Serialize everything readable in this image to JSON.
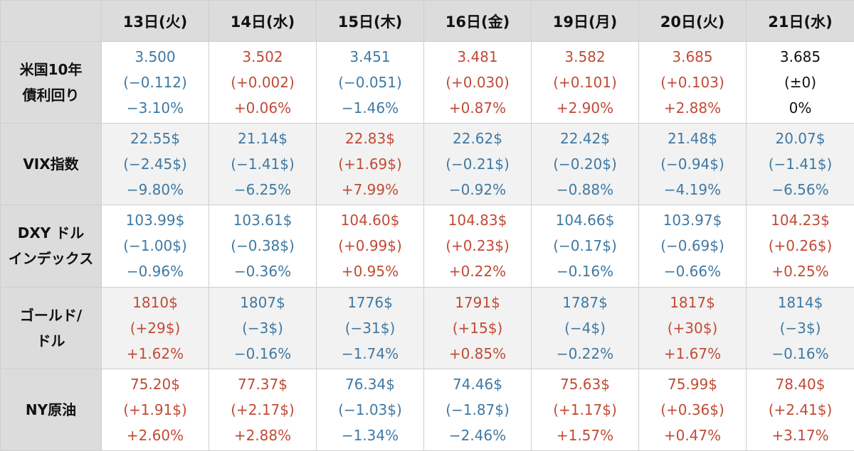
{
  "colors": {
    "up": "#c04b36",
    "down": "#3f79a3",
    "flat": "#111111",
    "header_bg": "#dcdcdc",
    "row_shade": "#f2f2f2"
  },
  "days": [
    "13日(火)",
    "14日(水)",
    "15日(木)",
    "16日(金)",
    "19日(月)",
    "20日(火)",
    "21日(水)"
  ],
  "rows": [
    {
      "label_lines": [
        "米国10年",
        "債利回り"
      ],
      "cells": [
        {
          "lines": [
            "3.500",
            "(−0.112)",
            "−3.10%"
          ],
          "trend": "down"
        },
        {
          "lines": [
            "3.502",
            "(+0.002)",
            "+0.06%"
          ],
          "trend": "up"
        },
        {
          "lines": [
            "3.451",
            "(−0.051)",
            "−1.46%"
          ],
          "trend": "down"
        },
        {
          "lines": [
            "3.481",
            "(+0.030)",
            "+0.87%"
          ],
          "trend": "up"
        },
        {
          "lines": [
            "3.582",
            "(+0.101)",
            "+2.90%"
          ],
          "trend": "up"
        },
        {
          "lines": [
            "3.685",
            "(+0.103)",
            "+2.88%"
          ],
          "trend": "up"
        },
        {
          "lines": [
            "3.685",
            "(±0)",
            "0%"
          ],
          "trend": "flat"
        }
      ]
    },
    {
      "label_lines": [
        "VIX指数"
      ],
      "cells": [
        {
          "lines": [
            "22.55$",
            "(−2.45$)",
            "−9.80%"
          ],
          "trend": "down"
        },
        {
          "lines": [
            "21.14$",
            "(−1.41$)",
            "−6.25%"
          ],
          "trend": "down"
        },
        {
          "lines": [
            "22.83$",
            "(+1.69$)",
            "+7.99%"
          ],
          "trend": "up"
        },
        {
          "lines": [
            "22.62$",
            "(−0.21$)",
            "−0.92%"
          ],
          "trend": "down"
        },
        {
          "lines": [
            "22.42$",
            "(−0.20$)",
            "−0.88%"
          ],
          "trend": "down"
        },
        {
          "lines": [
            "21.48$",
            "(−0.94$)",
            "−4.19%"
          ],
          "trend": "down"
        },
        {
          "lines": [
            "20.07$",
            "(−1.41$)",
            "−6.56%"
          ],
          "trend": "down"
        }
      ]
    },
    {
      "label_lines": [
        "DXY ドル",
        "インデックス"
      ],
      "cells": [
        {
          "lines": [
            "103.99$",
            "(−1.00$)",
            "−0.96%"
          ],
          "trend": "down"
        },
        {
          "lines": [
            "103.61$",
            "(−0.38$)",
            "−0.36%"
          ],
          "trend": "down"
        },
        {
          "lines": [
            "104.60$",
            "(+0.99$)",
            "+0.95%"
          ],
          "trend": "up"
        },
        {
          "lines": [
            "104.83$",
            "(+0.23$)",
            "+0.22%"
          ],
          "trend": "up"
        },
        {
          "lines": [
            "104.66$",
            "(−0.17$)",
            "−0.16%"
          ],
          "trend": "down"
        },
        {
          "lines": [
            "103.97$",
            "(−0.69$)",
            "−0.66%"
          ],
          "trend": "down"
        },
        {
          "lines": [
            "104.23$",
            "(+0.26$)",
            "+0.25%"
          ],
          "trend": "up"
        }
      ]
    },
    {
      "label_lines": [
        "ゴールド/",
        "ドル"
      ],
      "cells": [
        {
          "lines": [
            "1810$",
            "(+29$)",
            "+1.62%"
          ],
          "trend": "up"
        },
        {
          "lines": [
            "1807$",
            "(−3$)",
            "−0.16%"
          ],
          "trend": "down"
        },
        {
          "lines": [
            "1776$",
            "(−31$)",
            "−1.74%"
          ],
          "trend": "down"
        },
        {
          "lines": [
            "1791$",
            "(+15$)",
            "+0.85%"
          ],
          "trend": "up"
        },
        {
          "lines": [
            "1787$",
            "(−4$)",
            "−0.22%"
          ],
          "trend": "down"
        },
        {
          "lines": [
            "1817$",
            "(+30$)",
            "+1.67%"
          ],
          "trend": "up"
        },
        {
          "lines": [
            "1814$",
            "(−3$)",
            "−0.16%"
          ],
          "trend": "down"
        }
      ]
    },
    {
      "label_lines": [
        "NY原油"
      ],
      "cells": [
        {
          "lines": [
            "75.20$",
            "(+1.91$)",
            "+2.60%"
          ],
          "trend": "up"
        },
        {
          "lines": [
            "77.37$",
            "(+2.17$)",
            "+2.88%"
          ],
          "trend": "up"
        },
        {
          "lines": [
            "76.34$",
            "(−1.03$)",
            "−1.34%"
          ],
          "trend": "down"
        },
        {
          "lines": [
            "74.46$",
            "(−1.87$)",
            "−2.46%"
          ],
          "trend": "down"
        },
        {
          "lines": [
            "75.63$",
            "(+1.17$)",
            "+1.57%"
          ],
          "trend": "up"
        },
        {
          "lines": [
            "75.99$",
            "(+0.36$)",
            "+0.47%"
          ],
          "trend": "up"
        },
        {
          "lines": [
            "78.40$",
            "(+2.41$)",
            "+3.17%"
          ],
          "trend": "up"
        }
      ]
    }
  ]
}
